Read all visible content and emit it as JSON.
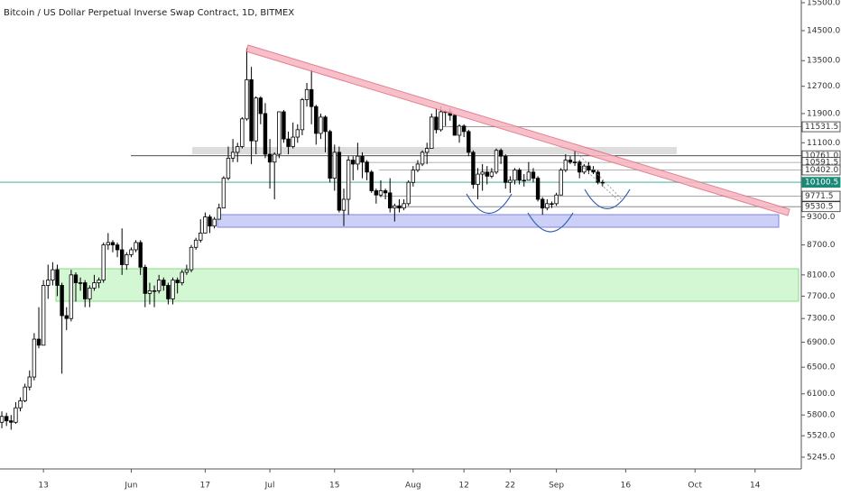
{
  "chart_data": {
    "type": "candlestick",
    "title": "Bitcoin / US Dollar Perpetual Inverse Swap Contract, 1D, BITMEX",
    "log_scale": true,
    "up_color": "#ffffff",
    "down_color": "#000000",
    "xlim": [
      -0.4,
      173
    ],
    "xticks": [
      {
        "value": 9,
        "label": "13"
      },
      {
        "value": 28,
        "label": "Jun"
      },
      {
        "value": 44,
        "label": "17"
      },
      {
        "value": 58,
        "label": "Jul"
      },
      {
        "value": 72,
        "label": "15"
      },
      {
        "value": 89,
        "label": "Aug"
      },
      {
        "value": 100,
        "label": "12"
      },
      {
        "value": 110,
        "label": "22"
      },
      {
        "value": 120,
        "label": "Sep"
      },
      {
        "value": 135,
        "label": "16"
      },
      {
        "value": 150,
        "label": "Oct"
      },
      {
        "value": 163,
        "label": "14"
      }
    ],
    "ylim": [
      5100,
      15600
    ],
    "yticks": [
      {
        "value": 15500,
        "label": "15500.0"
      },
      {
        "value": 14500,
        "label": "14500.0"
      },
      {
        "value": 13500,
        "label": "13500.0"
      },
      {
        "value": 12700,
        "label": "12700.0"
      },
      {
        "value": 11900,
        "label": "11900.0"
      },
      {
        "value": 11100,
        "label": "11100.0"
      },
      {
        "value": 9300,
        "label": "9300.0"
      },
      {
        "value": 8700,
        "label": "8700.0"
      },
      {
        "value": 8100,
        "label": "8100.0"
      },
      {
        "value": 7700,
        "label": "7700.0"
      },
      {
        "value": 7300,
        "label": "7300.0"
      },
      {
        "value": 6900,
        "label": "6900.0"
      },
      {
        "value": 6500,
        "label": "6500.0"
      },
      {
        "value": 6100,
        "label": "6100.0"
      },
      {
        "value": 5800,
        "label": "5800.0"
      },
      {
        "value": 5520,
        "label": "5520.0"
      },
      {
        "value": 5245,
        "label": "5245.0"
      }
    ],
    "levels": [
      {
        "value": 11531.5,
        "label": "11531.5"
      },
      {
        "value": 10761,
        "label": "10761.0"
      },
      {
        "value": 10591.5,
        "label": "10591.5"
      },
      {
        "value": 10402,
        "label": "10402.0"
      },
      {
        "value": 10100.5,
        "label": "10100.5"
      },
      {
        "value": 9771.5,
        "label": "9771.5"
      },
      {
        "value": 9530.5,
        "label": "9530.5"
      }
    ],
    "ohlc": [
      [
        5700,
        5850,
        5620,
        5780
      ],
      [
        5780,
        5830,
        5650,
        5720
      ],
      [
        5720,
        5800,
        5600,
        5700
      ],
      [
        5700,
        5980,
        5680,
        5900
      ],
      [
        5900,
        6050,
        5850,
        6000
      ],
      [
        6000,
        6250,
        5980,
        6200
      ],
      [
        6200,
        6450,
        6150,
        6350
      ],
      [
        6350,
        7050,
        6300,
        6950
      ],
      [
        6950,
        7500,
        6800,
        6850
      ],
      [
        6850,
        8000,
        6850,
        7900
      ],
      [
        7900,
        8300,
        7650,
        8000
      ],
      [
        8000,
        8350,
        7900,
        8200
      ],
      [
        8200,
        8300,
        7700,
        7900
      ],
      [
        7900,
        7950,
        6400,
        7350
      ],
      [
        7350,
        7500,
        7100,
        7300
      ],
      [
        7300,
        8200,
        7250,
        8100
      ],
      [
        8100,
        8150,
        7600,
        7950
      ],
      [
        7950,
        8050,
        7800,
        7950
      ],
      [
        7950,
        8000,
        7500,
        7650
      ],
      [
        7650,
        7900,
        7500,
        7850
      ],
      [
        7850,
        8100,
        7800,
        7950
      ],
      [
        7950,
        8050,
        7850,
        8000
      ],
      [
        8000,
        8750,
        7950,
        8700
      ],
      [
        8700,
        8950,
        8600,
        8750
      ],
      [
        8750,
        8800,
        8550,
        8700
      ],
      [
        8700,
        8750,
        8450,
        8600
      ],
      [
        8600,
        9050,
        8100,
        8300
      ],
      [
        8300,
        8550,
        8200,
        8500
      ],
      [
        8500,
        8650,
        8450,
        8600
      ],
      [
        8600,
        8800,
        8550,
        8750
      ],
      [
        8750,
        8800,
        8100,
        8250
      ],
      [
        8250,
        8300,
        7500,
        7750
      ],
      [
        7750,
        7950,
        7550,
        7800
      ],
      [
        7800,
        7900,
        7500,
        7800
      ],
      [
        7800,
        8100,
        7750,
        8000
      ],
      [
        8000,
        8050,
        7800,
        7900
      ],
      [
        7900,
        7950,
        7550,
        7650
      ],
      [
        7650,
        8050,
        7550,
        8000
      ],
      [
        8000,
        8050,
        7750,
        7950
      ],
      [
        7950,
        8200,
        7900,
        8150
      ],
      [
        8150,
        8300,
        8100,
        8200
      ],
      [
        8200,
        8700,
        8150,
        8650
      ],
      [
        8650,
        8850,
        8600,
        8800
      ],
      [
        8800,
        9250,
        8750,
        8950
      ],
      [
        8950,
        9400,
        8950,
        9300
      ],
      [
        9300,
        9350,
        8950,
        9100
      ],
      [
        9100,
        9300,
        9050,
        9250
      ],
      [
        9250,
        9600,
        9250,
        9500
      ],
      [
        9500,
        10250,
        9500,
        10200
      ],
      [
        10200,
        11000,
        10150,
        10700
      ],
      [
        10700,
        11200,
        10600,
        10850
      ],
      [
        10850,
        11100,
        10600,
        11000
      ],
      [
        11000,
        11800,
        10950,
        11750
      ],
      [
        11750,
        13900,
        11700,
        12900
      ],
      [
        12900,
        13300,
        10550,
        11150
      ],
      [
        11150,
        12400,
        10800,
        12350
      ],
      [
        12350,
        12400,
        11600,
        11900
      ],
      [
        11900,
        12200,
        10700,
        10800
      ],
      [
        10800,
        11200,
        9950,
        10600
      ],
      [
        10600,
        10850,
        9700,
        10800
      ],
      [
        10800,
        11950,
        10700,
        11950
      ],
      [
        11950,
        12000,
        11100,
        11200
      ],
      [
        11200,
        11400,
        10800,
        11000
      ],
      [
        11000,
        11650,
        10950,
        11250
      ],
      [
        11250,
        11600,
        11100,
        11450
      ],
      [
        11450,
        12350,
        11300,
        12300
      ],
      [
        12300,
        12800,
        12100,
        12600
      ],
      [
        12600,
        13200,
        11600,
        12100
      ],
      [
        12100,
        12150,
        11050,
        11350
      ],
      [
        11350,
        11900,
        11200,
        11800
      ],
      [
        11800,
        11850,
        10850,
        11400
      ],
      [
        11400,
        11450,
        10100,
        10200
      ],
      [
        10200,
        11050,
        9900,
        10850
      ],
      [
        10850,
        11000,
        9400,
        9450
      ],
      [
        9450,
        9950,
        9100,
        9700
      ],
      [
        9700,
        10750,
        9350,
        10650
      ],
      [
        10650,
        10750,
        10150,
        10550
      ],
      [
        10550,
        11100,
        10400,
        10750
      ],
      [
        10750,
        10850,
        10200,
        10600
      ],
      [
        10600,
        10650,
        10150,
        10350
      ],
      [
        10350,
        10400,
        9850,
        9900
      ],
      [
        9900,
        9950,
        9600,
        9800
      ],
      [
        9800,
        10150,
        9750,
        9900
      ],
      [
        9900,
        9950,
        9700,
        9850
      ],
      [
        9850,
        10200,
        9400,
        9500
      ],
      [
        9500,
        9600,
        9200,
        9550
      ],
      [
        9550,
        9700,
        9400,
        9500
      ],
      [
        9500,
        9700,
        9450,
        9600
      ],
      [
        9600,
        10150,
        9550,
        10100
      ],
      [
        10100,
        10500,
        10000,
        10400
      ],
      [
        10400,
        10650,
        10350,
        10550
      ],
      [
        10550,
        10900,
        10500,
        10850
      ],
      [
        10850,
        11100,
        10550,
        10950
      ],
      [
        10950,
        11900,
        10950,
        11800
      ],
      [
        11800,
        12050,
        11350,
        11450
      ],
      [
        11450,
        12100,
        11400,
        11950
      ],
      [
        11950,
        12000,
        11550,
        11950
      ],
      [
        11950,
        12050,
        11700,
        11850
      ],
      [
        11850,
        11900,
        11300,
        11300
      ],
      [
        11300,
        11600,
        11100,
        11550
      ],
      [
        11550,
        11600,
        11250,
        11400
      ],
      [
        11400,
        11450,
        10750,
        10850
      ],
      [
        10850,
        10900,
        9950,
        10050
      ],
      [
        10050,
        10450,
        9700,
        10300
      ],
      [
        10300,
        10550,
        9900,
        10350
      ],
      [
        10350,
        10500,
        10050,
        10250
      ],
      [
        10250,
        10450,
        10200,
        10350
      ],
      [
        10350,
        10950,
        10300,
        10900
      ],
      [
        10900,
        10950,
        10550,
        10750
      ],
      [
        10750,
        10800,
        9950,
        10100
      ],
      [
        10100,
        10250,
        9850,
        10150
      ],
      [
        10150,
        10450,
        10050,
        10400
      ],
      [
        10400,
        10450,
        10050,
        10150
      ],
      [
        10150,
        10300,
        10000,
        10150
      ],
      [
        10150,
        10600,
        10150,
        10350
      ],
      [
        10350,
        10450,
        10100,
        10200
      ],
      [
        10200,
        10250,
        9650,
        9700
      ],
      [
        9700,
        9750,
        9350,
        9500
      ],
      [
        9500,
        9700,
        9450,
        9600
      ],
      [
        9600,
        9650,
        9500,
        9600
      ],
      [
        9600,
        9850,
        9550,
        9800
      ],
      [
        9800,
        10450,
        9800,
        10400
      ],
      [
        10400,
        10800,
        10350,
        10650
      ],
      [
        10650,
        10750,
        10550,
        10600
      ],
      [
        10600,
        10900,
        10500,
        10600
      ],
      [
        10600,
        10650,
        10200,
        10350
      ],
      [
        10350,
        10550,
        10300,
        10500
      ],
      [
        10500,
        10600,
        10300,
        10400
      ],
      [
        10400,
        10500,
        10300,
        10350
      ],
      [
        10350,
        10400,
        10050,
        10100
      ],
      [
        10100,
        10150,
        10000,
        10100.5
      ]
    ]
  }
}
